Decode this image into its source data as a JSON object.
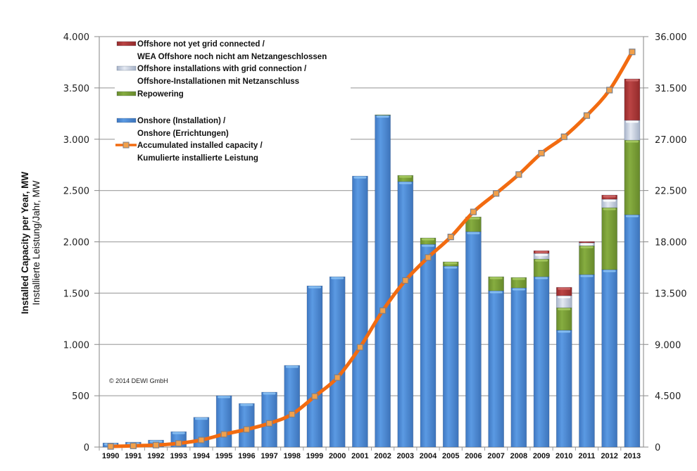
{
  "chart_data": {
    "type": "bar",
    "subtype": "stacked bar with line on secondary axis",
    "title": "",
    "xlabel": "",
    "ylabel": "Installed Capacity per Year, MW",
    "ylabel_secondary_line": "Installierte Leistung/Jahr, MW",
    "y2label": "",
    "ylim": [
      0,
      4000
    ],
    "y2lim": [
      0,
      36000
    ],
    "yticks": [
      "0",
      "500",
      "1.000",
      "1.500",
      "2.000",
      "2.500",
      "3.000",
      "3.500",
      "4.000"
    ],
    "y2ticks": [
      "0",
      "4.500",
      "9.000",
      "13.500",
      "18.000",
      "22.500",
      "27.000",
      "31.500",
      "36.000"
    ],
    "grid": true,
    "legend_position": "top-left",
    "categories": [
      "1990",
      "1991",
      "1992",
      "1993",
      "1994",
      "1995",
      "1996",
      "1997",
      "1998",
      "1999",
      "2000",
      "2001",
      "2002",
      "2003",
      "2004",
      "2005",
      "2006",
      "2007",
      "2008",
      "2009",
      "2010",
      "2011",
      "2012",
      "2013"
    ],
    "series": [
      {
        "name": "Onshore (Installation) / Onshore (Errichtungen)",
        "kind": "bar",
        "axis": "left",
        "color": "#4f8fd9",
        "values": [
          40,
          48,
          68,
          150,
          290,
          501,
          425,
          535,
          796,
          1571,
          1660,
          2641,
          3234,
          2587,
          1976,
          1763,
          2099,
          1523,
          1551,
          1660,
          1139,
          1681,
          1729,
          2264
        ]
      },
      {
        "name": "Repowering",
        "kind": "bar",
        "axis": "left",
        "color": "#7ea33a",
        "values": [
          0,
          0,
          0,
          0,
          0,
          0,
          0,
          0,
          0,
          0,
          0,
          0,
          4,
          61,
          62,
          42,
          144,
          137,
          102,
          172,
          219,
          281,
          604,
          727
        ]
      },
      {
        "name": "Offshore installations with grid connection / Offshore-Installationen mit Netzanschluss",
        "kind": "bar",
        "axis": "left",
        "color": "#c5cfe0",
        "values": [
          0,
          0,
          0,
          0,
          0,
          0,
          0,
          0,
          0,
          0,
          0,
          0,
          0,
          0,
          0,
          0,
          0,
          0,
          0,
          55,
          117,
          28,
          82,
          193
        ]
      },
      {
        "name": "Offshore not yet grid connected / WEA Offshore noch nicht am Netzangeschlossen",
        "kind": "bar",
        "axis": "left",
        "color": "#b23c3c",
        "values": [
          0,
          0,
          0,
          0,
          0,
          0,
          0,
          0,
          0,
          0,
          0,
          0,
          0,
          0,
          0,
          0,
          0,
          0,
          0,
          27,
          82,
          13,
          41,
          404
        ]
      },
      {
        "name": "Accumulated installed capacity / Kumulierte installierte Leistung",
        "kind": "line",
        "axis": "right",
        "color": "#f26b10",
        "marker_color": "#f2a04a",
        "values": [
          55,
          106,
          174,
          326,
          618,
          1121,
          1546,
          2081,
          2877,
          4443,
          6095,
          8754,
          11965,
          14609,
          16629,
          18428,
          20622,
          22247,
          23903,
          25777,
          27214,
          29075,
          31308,
          34660
        ]
      }
    ],
    "legend": [
      {
        "key": "offshore-not-connected",
        "line1": "Offshore not yet grid connected /",
        "line2": "WEA Offshore noch nicht am Netzangeschlossen",
        "color": "#b23c3c",
        "marker": "bar"
      },
      {
        "key": "offshore-connected",
        "line1": "Offshore installations with grid connection /",
        "line2": "Offshore-Installationen mit Netzanschluss",
        "color": "#c5cfe0",
        "marker": "bar"
      },
      {
        "key": "repowering",
        "line1": "Repowering",
        "line2": "",
        "color": "#7ea33a",
        "marker": "bar"
      },
      {
        "key": "onshore",
        "line1": "Onshore (Installation) /",
        "line2": "Onshore (Errichtungen)",
        "color": "#4f8fd9",
        "marker": "bar"
      },
      {
        "key": "accumulated",
        "line1": "Accumulated installed capacity /",
        "line2": "Kumulierte installierte Leistung",
        "color": "#f26b10",
        "marker": "line"
      }
    ],
    "annotations": [
      "© 2014 DEWI GmbH"
    ]
  }
}
